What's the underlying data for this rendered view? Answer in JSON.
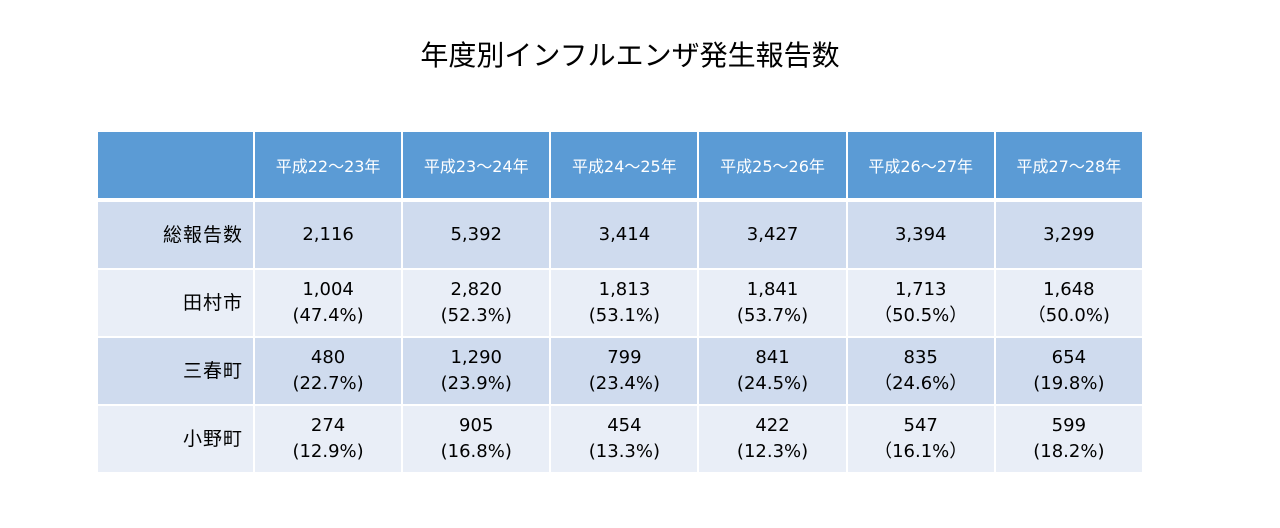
{
  "title": "年度別インフルエンザ発生報告数",
  "table": {
    "headers": [
      "",
      "平成22～23年",
      "平成23～24年",
      "平成24～25年",
      "平成25～26年",
      "平成26～27年",
      "平成27～28年"
    ],
    "rows": [
      {
        "label": "総報告数",
        "values": [
          "2,116",
          "5,392",
          "3,414",
          "3,427",
          "3,394",
          "3,299"
        ],
        "percents": [
          "",
          "",
          "",
          "",
          "",
          ""
        ]
      },
      {
        "label": "田村市",
        "values": [
          "1,004",
          "2,820",
          "1,813",
          "1,841",
          "1,713",
          "1,648"
        ],
        "percents": [
          "(47.4%)",
          "(52.3%)",
          "(53.1%)",
          "(53.7%)",
          "（50.5%）",
          "（50.0%)"
        ]
      },
      {
        "label": "三春町",
        "values": [
          "480",
          "1,290",
          "799",
          "841",
          "835",
          "654"
        ],
        "percents": [
          "(22.7%)",
          "(23.9%)",
          "(23.4%)",
          "(24.5%)",
          "（24.6%）",
          "(19.8%)"
        ]
      },
      {
        "label": "小野町",
        "values": [
          "274",
          "905",
          "454",
          "422",
          "547",
          "599"
        ],
        "percents": [
          "(12.9%)",
          "(16.8%)",
          "(13.3%)",
          "(12.3%)",
          "（16.1%）",
          "(18.2%)"
        ]
      }
    ]
  },
  "colors": {
    "header_bg": "#5b9bd5",
    "row_dark": "#cfdbee",
    "row_light": "#e9eef7",
    "header_text": "#ffffff"
  }
}
